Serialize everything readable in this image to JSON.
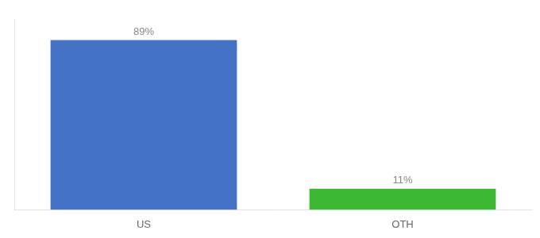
{
  "chart_data": {
    "type": "bar",
    "categories": [
      "US",
      "OTH"
    ],
    "values": [
      89,
      11
    ],
    "value_labels": [
      "89%",
      "11%"
    ],
    "colors": [
      "#4472c4",
      "#3cb832"
    ],
    "ylim": [
      0,
      100
    ],
    "grid": false,
    "tick_labels": "x",
    "data_labels": true
  }
}
